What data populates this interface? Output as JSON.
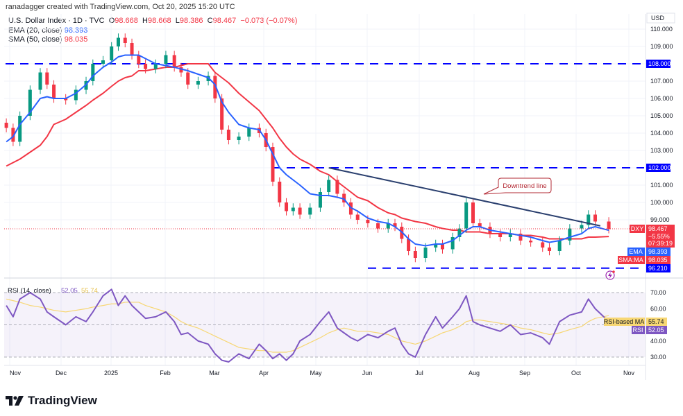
{
  "header": {
    "credit": "ranadagger created with TradingView.com, Oct 20, 2025 15:20 UTC",
    "symbol": "U.S. Dollar Index · 1D · TVC",
    "open_label": "O",
    "open": "98.668",
    "high_label": "H",
    "high": "98.668",
    "low_label": "L",
    "low": "98.386",
    "close_label": "C",
    "close": "98.467",
    "change": "−0.073 (−0.07%)",
    "ema_label": "EMA (20, close)",
    "ema_value": "98.393",
    "sma_label": "SMA (50, close)",
    "sma_value": "98.035",
    "rsi_label": "RSI (14, close)",
    "rsi_value": "52.05",
    "rsi_ma_value": "55.74"
  },
  "price_axis": {
    "currency": "USD",
    "ticks": [
      "110.000",
      "109.000",
      "107.000",
      "106.000",
      "105.000",
      "104.000",
      "103.000",
      "101.000",
      "100.000",
      "99.000"
    ],
    "level_labels": [
      "108.000",
      "102.000",
      "96.210"
    ]
  },
  "rsi_axis": {
    "ticks": [
      "70.00",
      "60.00",
      "40.00",
      "30.00"
    ]
  },
  "time_axis": {
    "ticks": [
      "Nov",
      "Dec",
      "2025",
      "Feb",
      "Mar",
      "Apr",
      "May",
      "Jun",
      "Jul",
      "Aug",
      "Sep",
      "Oct",
      "Nov"
    ]
  },
  "badges": {
    "symbol": "DXY",
    "price": "98.467",
    "change_pct": "−5.55%",
    "countdown": "07:39:19",
    "ema": "EMA",
    "ema_value": "98.393",
    "sma": "SMA:MA",
    "sma_value": "98.035",
    "rsi_ma": "RSI-based MA",
    "rsi_ma_value": "55.74",
    "rsi": "RSI",
    "rsi_value": "52.05"
  },
  "annotation": {
    "downtrend_label": "Downtrend line"
  },
  "logo": {
    "text": "TradingView"
  },
  "colors": {
    "up": "#089981",
    "down": "#f23645",
    "ema": "#2962ff",
    "sma": "#f23645",
    "levels": "#0000ff",
    "trendline": "#2a3f6e",
    "rsi": "#7e57c2",
    "rsi_ma": "#f7d774"
  },
  "chart_data": {
    "type": "candlestick",
    "title": "U.S. Dollar Index · 1D · TVC",
    "ylim": [
      95.5,
      110.5
    ],
    "rsi_ylim": [
      20,
      80
    ],
    "grid": true,
    "horizontal_levels": [
      108.0,
      102.0,
      96.21
    ],
    "trendline": {
      "from": [
        "2025-05-08",
        102.0
      ],
      "to": [
        "2025-10-15",
        98.65
      ]
    },
    "dates": [
      "2024-10-30",
      "2024-11-03",
      "2024-11-07",
      "2024-11-13",
      "2024-11-19",
      "2024-11-23",
      "2024-11-27",
      "2024-12-04",
      "2024-12-10",
      "2024-12-16",
      "2024-12-20",
      "2024-12-26",
      "2024-12-31",
      "2025-01-04",
      "2025-01-08",
      "2025-01-12",
      "2025-01-16",
      "2025-01-20",
      "2025-01-26",
      "2025-02-01",
      "2025-02-06",
      "2025-02-10",
      "2025-02-14",
      "2025-02-20",
      "2025-02-26",
      "2025-03-02",
      "2025-03-06",
      "2025-03-10",
      "2025-03-16",
      "2025-03-22",
      "2025-03-28",
      "2025-04-01",
      "2025-04-05",
      "2025-04-09",
      "2025-04-13",
      "2025-04-17",
      "2025-04-21",
      "2025-04-27",
      "2025-05-03",
      "2025-05-08",
      "2025-05-13",
      "2025-05-17",
      "2025-05-21",
      "2025-05-25",
      "2025-05-31",
      "2025-06-06",
      "2025-06-12",
      "2025-06-16",
      "2025-06-20",
      "2025-06-24",
      "2025-06-28",
      "2025-07-04",
      "2025-07-10",
      "2025-07-14",
      "2025-07-20",
      "2025-07-24",
      "2025-07-28",
      "2025-08-01",
      "2025-08-05",
      "2025-08-11",
      "2025-08-17",
      "2025-08-23",
      "2025-08-29",
      "2025-09-04",
      "2025-09-11",
      "2025-09-15",
      "2025-09-21",
      "2025-09-27",
      "2025-10-04",
      "2025-10-08",
      "2025-10-12",
      "2025-10-20"
    ],
    "close": [
      104.3,
      103.5,
      105.0,
      106.5,
      107.5,
      106.8,
      106.0,
      105.9,
      106.5,
      107.0,
      108.0,
      108.2,
      109.0,
      109.5,
      109.2,
      108.5,
      108.0,
      107.7,
      108.0,
      108.5,
      107.8,
      107.5,
      106.8,
      107.0,
      107.3,
      106.0,
      104.2,
      103.6,
      103.8,
      104.3,
      104.0,
      103.2,
      101.2,
      100.0,
      99.5,
      99.7,
      99.3,
      99.7,
      100.6,
      101.3,
      100.5,
      100.0,
      99.3,
      99.0,
      98.8,
      98.5,
      98.8,
      98.6,
      97.9,
      97.2,
      96.8,
      97.4,
      97.6,
      97.3,
      98.0,
      98.5,
      100.0,
      98.8,
      98.6,
      98.2,
      98.0,
      98.2,
      97.8,
      97.7,
      97.4,
      97.2,
      97.8,
      98.5,
      98.7,
      99.3,
      98.9,
      98.467
    ],
    "ema20": [
      103.5,
      103.8,
      104.5,
      105.2,
      106.0,
      106.1,
      106.0,
      106.0,
      106.3,
      106.8,
      107.3,
      107.8,
      108.1,
      108.4,
      108.5,
      108.5,
      108.5,
      108.3,
      108.0,
      107.9,
      107.8,
      107.7,
      107.6,
      107.4,
      107.2,
      106.8,
      105.8,
      105.2,
      104.5,
      104.3,
      104.2,
      103.6,
      102.8,
      102.0,
      101.6,
      101.3,
      101.0,
      100.5,
      100.4,
      100.4,
      100.3,
      100.2,
      99.7,
      99.5,
      99.1,
      98.9,
      98.8,
      98.6,
      98.3,
      97.9,
      97.6,
      97.5,
      97.6,
      97.6,
      97.8,
      98.1,
      98.4,
      98.6,
      98.6,
      98.4,
      98.3,
      98.2,
      98.1,
      98.0,
      97.8,
      97.7,
      97.8,
      98.0,
      98.2,
      98.5,
      98.6,
      98.393
    ],
    "sma50": [
      102.1,
      102.3,
      102.5,
      102.9,
      103.3,
      103.8,
      104.5,
      104.8,
      105.2,
      105.6,
      105.9,
      106.3,
      106.7,
      107.0,
      107.2,
      107.3,
      107.6,
      107.6,
      107.7,
      107.8,
      107.8,
      107.9,
      108.0,
      108.0,
      108.0,
      107.5,
      107.2,
      106.9,
      106.3,
      105.8,
      105.3,
      104.8,
      104.3,
      103.7,
      103.2,
      102.8,
      102.5,
      102.2,
      101.8,
      101.6,
      101.2,
      100.9,
      100.6,
      100.3,
      100.1,
      99.7,
      99.4,
      99.3,
      99.1,
      99.0,
      98.9,
      98.8,
      98.6,
      98.5,
      98.4,
      98.4,
      98.3,
      98.3,
      98.3,
      98.2,
      98.2,
      98.2,
      98.1,
      98.1,
      98.0,
      97.9,
      97.9,
      97.9,
      97.9,
      98.0,
      98.0,
      98.035
    ],
    "rsi": [
      62,
      55,
      66,
      70,
      66,
      58,
      55,
      50,
      55,
      52,
      58,
      68,
      72,
      62,
      68,
      62,
      58,
      54,
      55,
      58,
      52,
      44,
      45,
      40,
      38,
      32,
      28,
      27,
      32,
      29,
      38,
      34,
      29,
      32,
      28,
      32,
      40,
      44,
      52,
      58,
      48,
      45,
      42,
      40,
      44,
      42,
      46,
      48,
      38,
      32,
      30,
      44,
      55,
      48,
      55,
      60,
      68,
      52,
      50,
      48,
      46,
      50,
      44,
      45,
      42,
      38,
      52,
      56,
      58,
      66,
      60,
      52.05
    ],
    "rsi_ma": [
      66,
      65,
      64,
      62,
      61,
      60,
      59,
      58,
      59,
      60,
      61,
      62,
      63,
      63,
      64,
      64,
      64,
      62,
      60,
      58,
      55,
      52,
      50,
      48,
      45,
      43,
      41,
      39,
      36,
      35,
      34,
      34,
      33,
      33,
      33,
      34,
      36,
      39,
      42,
      45,
      47,
      48,
      47,
      46,
      46,
      45,
      44,
      42,
      40,
      39,
      38,
      40,
      43,
      45,
      47,
      49,
      52,
      53,
      53,
      52,
      51,
      50,
      48,
      47,
      45,
      44,
      45,
      47,
      49,
      52,
      54,
      55.74
    ]
  }
}
